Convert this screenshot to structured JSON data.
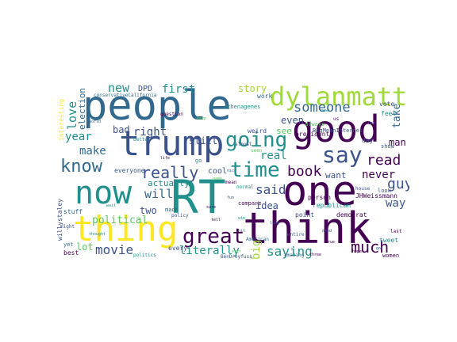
{
  "colors": {
    "purple": "#440154",
    "indigo": "#3b528b",
    "teal": "#21908c",
    "green": "#5dc863",
    "yellow": "#fde725",
    "blue": "#31688e"
  },
  "words": [
    {
      "text": "RT",
      "color": "#21908c"
    },
    {
      "text": "people",
      "color": "#31688e"
    },
    {
      "text": "think",
      "color": "#440154"
    },
    {
      "text": "one",
      "color": "#440154"
    },
    {
      "text": "good",
      "color": "#440154"
    },
    {
      "text": "trump",
      "color": "#3b528b"
    },
    {
      "text": "thing",
      "color": "#fde725"
    },
    {
      "text": "now",
      "color": "#21908c"
    },
    {
      "text": "dylanmatt",
      "color": "#a0da39"
    },
    {
      "text": "great",
      "color": "#440154"
    },
    {
      "text": "going",
      "color": "#21908c"
    },
    {
      "text": "say",
      "color": "#3b528b"
    },
    {
      "text": "time",
      "color": "#21908c"
    },
    {
      "text": "know",
      "color": "#31688e"
    },
    {
      "text": "really",
      "color": "#3b528b"
    },
    {
      "text": "someone",
      "color": "#31688e"
    },
    {
      "text": "read",
      "color": "#440154"
    },
    {
      "text": "book",
      "color": "#440154"
    },
    {
      "text": "much",
      "color": "#440154"
    },
    {
      "text": "guy",
      "color": "#3b528b"
    },
    {
      "text": "saying",
      "color": "#21908c"
    },
    {
      "text": "movie",
      "color": "#3b528b"
    },
    {
      "text": "new",
      "color": "#21908c"
    },
    {
      "text": "first",
      "color": "#21908c"
    },
    {
      "text": "right",
      "color": "#3b528b"
    },
    {
      "text": "year",
      "color": "#21908c"
    },
    {
      "text": "make",
      "color": "#31688e"
    },
    {
      "text": "love",
      "color": "#21908c"
    },
    {
      "text": "will",
      "color": "#31688e"
    },
    {
      "text": "said",
      "color": "#3b528b"
    },
    {
      "text": "never",
      "color": "#440154"
    },
    {
      "text": "way",
      "color": "#3b528b"
    },
    {
      "text": "take",
      "color": "#31688e"
    },
    {
      "text": "big",
      "color": "#a0da39"
    },
    {
      "text": "literally",
      "color": "#21908c"
    },
    {
      "text": "political",
      "color": "#5dc863"
    },
    {
      "text": "two",
      "color": "#3b528b"
    },
    {
      "text": "story",
      "color": "#a0da39"
    },
    {
      "text": "real",
      "color": "#21908c"
    },
    {
      "text": "still",
      "color": "#3b528b"
    },
    {
      "text": "bad",
      "color": "#3b528b"
    },
    {
      "text": "actually",
      "color": "#21908c"
    },
    {
      "text": "idea",
      "color": "#3b528b"
    },
    {
      "text": "even",
      "color": "#3b528b"
    },
    {
      "text": "see",
      "color": "#5dc863"
    },
    {
      "text": "want",
      "color": "#3b528b"
    },
    {
      "text": "man",
      "color": "#440154"
    },
    {
      "text": "election",
      "color": "#31688e"
    },
    {
      "text": "lot",
      "color": "#5dc863"
    },
    {
      "text": "DPD",
      "color": "#3b528b"
    },
    {
      "text": "cool",
      "color": "#3b528b"
    },
    {
      "text": "JHWeissmann",
      "color": "#440154"
    },
    {
      "text": "BigMeanInternet",
      "color": "#3b528b"
    },
    {
      "text": "republican",
      "color": "#21908c"
    },
    {
      "text": "democrat",
      "color": "#440154"
    },
    {
      "text": "president",
      "color": "#440154"
    },
    {
      "text": "day",
      "color": "#3b528b"
    },
    {
      "text": "work",
      "color": "#31688e"
    },
    {
      "text": "vote",
      "color": "#3b528b"
    },
    {
      "text": "feel",
      "color": "#21908c"
    },
    {
      "text": "weird",
      "color": "#3b528b"
    },
    {
      "text": "tweet",
      "color": "#21908c"
    },
    {
      "text": "point",
      "color": "#3b528b"
    },
    {
      "text": "person",
      "color": "#440154"
    },
    {
      "text": "every",
      "color": "#3b528b"
    },
    {
      "text": "everyone",
      "color": "#3b528b"
    },
    {
      "text": "made",
      "color": "#31688e"
    },
    {
      "text": "stuff",
      "color": "#31688e"
    },
    {
      "text": "best",
      "color": "#440154"
    },
    {
      "text": "show",
      "color": "#3b528b"
    },
    {
      "text": "look",
      "color": "#3b528b"
    },
    {
      "text": "amazing",
      "color": "#31688e"
    },
    {
      "text": "women",
      "color": "#440154"
    },
    {
      "text": "always",
      "color": "#5dc863"
    },
    {
      "text": "interesting",
      "color": "#fde725"
    },
    {
      "text": "willystaley",
      "color": "#3b528b"
    },
    {
      "text": "conservativeCalifornia",
      "color": "#31688e"
    },
    {
      "text": "athenagenes",
      "color": "#21908c"
    },
    {
      "text": "better",
      "color": "#21908c"
    },
    {
      "text": "compare",
      "color": "#440154"
    },
    {
      "text": "normal",
      "color": "#21908c"
    },
    {
      "text": "policy",
      "color": "#3b528b"
    },
    {
      "text": "politics",
      "color": "#21908c"
    },
    {
      "text": "question",
      "color": "#440154"
    },
    {
      "text": "house",
      "color": "#3b528b"
    },
    {
      "text": "last",
      "color": "#440154"
    },
    {
      "text": "might",
      "color": "#3b528b"
    },
    {
      "text": "seen",
      "color": "#5dc863"
    },
    {
      "text": "American",
      "color": "#31688e"
    },
    {
      "text": "almost",
      "color": "#3b528b"
    },
    {
      "text": "mean",
      "color": "#440154"
    },
    {
      "text": "go",
      "color": "#21908c"
    },
    {
      "text": "BenDreyfuss",
      "color": "#3b528b"
    },
    {
      "text": "us",
      "color": "#440154"
    },
    {
      "text": "entire",
      "color": "#3b528b"
    },
    {
      "text": "yet",
      "color": "#31688e"
    },
    {
      "text": "ever",
      "color": "#5dc863"
    },
    {
      "text": "hit",
      "color": "#3b528b"
    },
    {
      "text": "three",
      "color": "#440154"
    },
    {
      "text": "win",
      "color": "#21908c"
    },
    {
      "text": "part",
      "color": "#31688e"
    },
    {
      "text": "sure",
      "color": "#440154"
    },
    {
      "text": "game",
      "color": "#5dc863"
    },
    {
      "text": "need",
      "color": "#3b528b"
    },
    {
      "text": "got",
      "color": "#31688e"
    },
    {
      "text": "thought",
      "color": "#21908c"
    },
    {
      "text": "hope",
      "color": "#440154"
    },
    {
      "text": "use",
      "color": "#3b528b"
    },
    {
      "text": "wait",
      "color": "#21908c"
    },
    {
      "text": "life",
      "color": "#440154"
    },
    {
      "text": "world",
      "color": "#31688e"
    },
    {
      "text": "keep",
      "color": "#5dc863"
    },
    {
      "text": "long",
      "color": "#3b528b"
    },
    {
      "text": "tell",
      "color": "#440154"
    },
    {
      "text": "news",
      "color": "#21908c"
    },
    {
      "text": "fun",
      "color": "#3b528b"
    },
    {
      "text": "nice",
      "color": "#31688e"
    },
    {
      "text": "true",
      "color": "#440154"
    }
  ]
}
